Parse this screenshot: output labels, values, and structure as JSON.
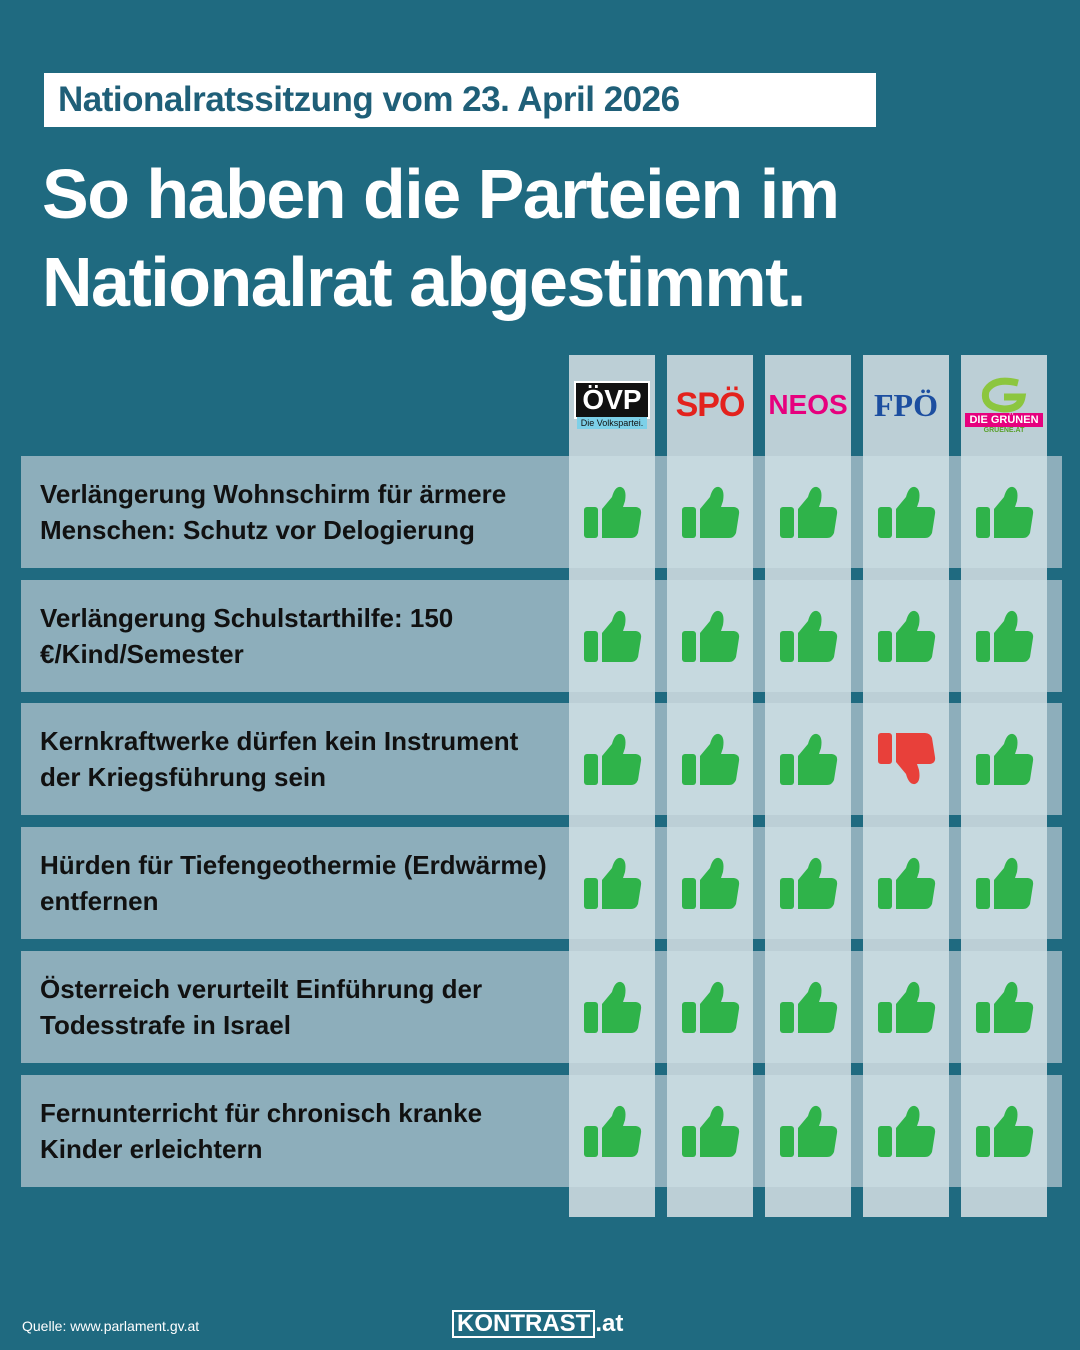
{
  "header": {
    "kicker": "Nationalratssitzung vom 23. April 2026",
    "title": "So haben die Parteien im Nationalrat abgestimmt."
  },
  "parties": [
    {
      "name": "ÖVP",
      "tagline": "Die Volkspartei."
    },
    {
      "name": "SPÖ"
    },
    {
      "name": "NEOS"
    },
    {
      "name": "FPÖ"
    },
    {
      "name": "DIE GRÜNEN",
      "tagline": "GRUENE.AT"
    }
  ],
  "rows": [
    {
      "label": "Verlängerung Wohnschirm für ärmere Menschen: Schutz vor Delogierung",
      "votes": [
        "yes",
        "yes",
        "yes",
        "yes",
        "yes"
      ]
    },
    {
      "label": "Verlängerung Schulstarthilfe: 150 €/Kind/Semester",
      "votes": [
        "yes",
        "yes",
        "yes",
        "yes",
        "yes"
      ]
    },
    {
      "label": "Kernkraftwerke dürfen kein Instrument der Kriegsführung sein",
      "votes": [
        "yes",
        "yes",
        "yes",
        "no",
        "yes"
      ]
    },
    {
      "label": "Hürden für Tiefengeothermie (Erdwärme) entfernen",
      "votes": [
        "yes",
        "yes",
        "yes",
        "yes",
        "yes"
      ]
    },
    {
      "label": "Österreich verurteilt Einführung der Todesstrafe in Israel",
      "votes": [
        "yes",
        "yes",
        "yes",
        "yes",
        "yes"
      ]
    },
    {
      "label": "Fernunterricht für chronisch kranke Kinder erleichtern",
      "votes": [
        "yes",
        "yes",
        "yes",
        "yes",
        "yes"
      ]
    }
  ],
  "footer": {
    "source": "Quelle: www.parlament.gv.at",
    "brand": "KONTRAST",
    "brand_suffix": ".at"
  }
}
